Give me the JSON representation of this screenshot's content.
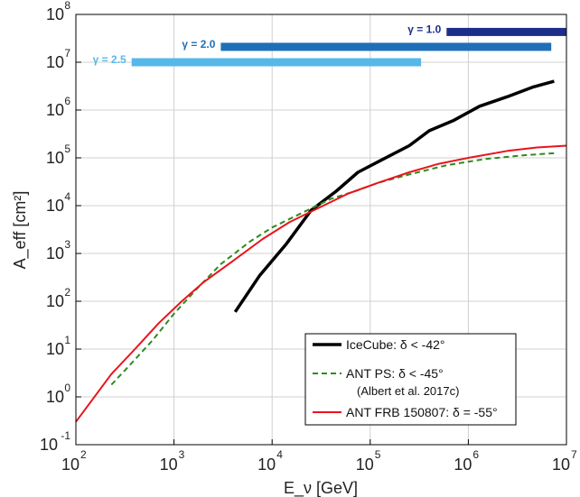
{
  "chart_data": {
    "type": "line",
    "xlabel": "E_ν [GeV]",
    "ylabel": "A_eff [cm²]",
    "xscale": "log",
    "yscale": "log",
    "xlim": [
      100,
      10000000
    ],
    "ylim": [
      0.1,
      100000000
    ],
    "grid": true,
    "x_ticks": [
      {
        "value": 100,
        "mantissa": "10",
        "exponent": "2"
      },
      {
        "value": 1000,
        "mantissa": "10",
        "exponent": "3"
      },
      {
        "value": 10000,
        "mantissa": "10",
        "exponent": "4"
      },
      {
        "value": 100000,
        "mantissa": "10",
        "exponent": "5"
      },
      {
        "value": 1000000,
        "mantissa": "10",
        "exponent": "6"
      },
      {
        "value": 10000000,
        "mantissa": "10",
        "exponent": "7"
      }
    ],
    "y_ticks": [
      {
        "value": 0.1,
        "mantissa": "10",
        "exponent": "-1"
      },
      {
        "value": 1,
        "mantissa": "10",
        "exponent": "0"
      },
      {
        "value": 10,
        "mantissa": "10",
        "exponent": "1"
      },
      {
        "value": 100,
        "mantissa": "10",
        "exponent": "2"
      },
      {
        "value": 1000,
        "mantissa": "10",
        "exponent": "3"
      },
      {
        "value": 10000,
        "mantissa": "10",
        "exponent": "4"
      },
      {
        "value": 100000,
        "mantissa": "10",
        "exponent": "5"
      },
      {
        "value": 1000000,
        "mantissa": "10",
        "exponent": "6"
      },
      {
        "value": 10000000,
        "mantissa": "10",
        "exponent": "7"
      },
      {
        "value": 100000000,
        "mantissa": "10",
        "exponent": "8"
      }
    ],
    "series": [
      {
        "name": "IceCube: δ < -42°",
        "color": "#000000",
        "style": "solid",
        "points": [
          [
            4200,
            60
          ],
          [
            7500,
            350
          ],
          [
            14000,
            1600
          ],
          [
            25000,
            8000
          ],
          [
            45000,
            20000
          ],
          [
            75000,
            50000
          ],
          [
            130000,
            90000
          ],
          [
            250000,
            180000
          ],
          [
            400000,
            370000
          ],
          [
            700000,
            600000
          ],
          [
            1300000,
            1200000
          ],
          [
            2500000,
            1900000
          ],
          [
            4500000,
            3000000
          ],
          [
            7500000,
            4000000
          ]
        ]
      },
      {
        "name": "ANT PS: δ < -45°",
        "note": "(Albert et al. 2017c)",
        "color": "#2e8b1e",
        "style": "dashed",
        "points": [
          [
            230,
            1.8
          ],
          [
            350,
            4.5
          ],
          [
            600,
            15
          ],
          [
            1000,
            55
          ],
          [
            1700,
            180
          ],
          [
            3000,
            600
          ],
          [
            6000,
            1800
          ],
          [
            10000,
            3500
          ],
          [
            20000,
            7000
          ],
          [
            40000,
            14000
          ],
          [
            70000,
            20000
          ],
          [
            120000,
            30000
          ],
          [
            250000,
            45000
          ],
          [
            600000,
            70000
          ],
          [
            1500000,
            95000
          ],
          [
            4000000,
            115000
          ],
          [
            7500000,
            125000
          ]
        ]
      },
      {
        "name": "ANT FRB 150807: δ = -55°",
        "color": "#e8141c",
        "style": "solid",
        "points": [
          [
            100,
            0.3
          ],
          [
            230,
            3
          ],
          [
            400,
            10
          ],
          [
            700,
            35
          ],
          [
            1200,
            100
          ],
          [
            2000,
            250
          ],
          [
            4000,
            700
          ],
          [
            8000,
            2000
          ],
          [
            15000,
            4500
          ],
          [
            30000,
            9000
          ],
          [
            60000,
            18000
          ],
          [
            120000,
            30000
          ],
          [
            250000,
            50000
          ],
          [
            500000,
            75000
          ],
          [
            1000000,
            100000
          ],
          [
            2500000,
            140000
          ],
          [
            5000000,
            165000
          ],
          [
            10000000,
            180000
          ]
        ]
      }
    ],
    "bands": [
      {
        "label": "γ = 2.5",
        "color": "#55b8e8",
        "x_range": [
          370,
          330000
        ],
        "y": 10000000
      },
      {
        "label": "γ = 2.0",
        "color": "#1f6fb8",
        "x_range": [
          3000,
          7000000
        ],
        "y": 21000000
      },
      {
        "label": "γ = 1.0",
        "color": "#1c2f88",
        "x_range": [
          600000,
          10000000
        ],
        "y": 43000000
      }
    ],
    "legend": "lower-right"
  }
}
